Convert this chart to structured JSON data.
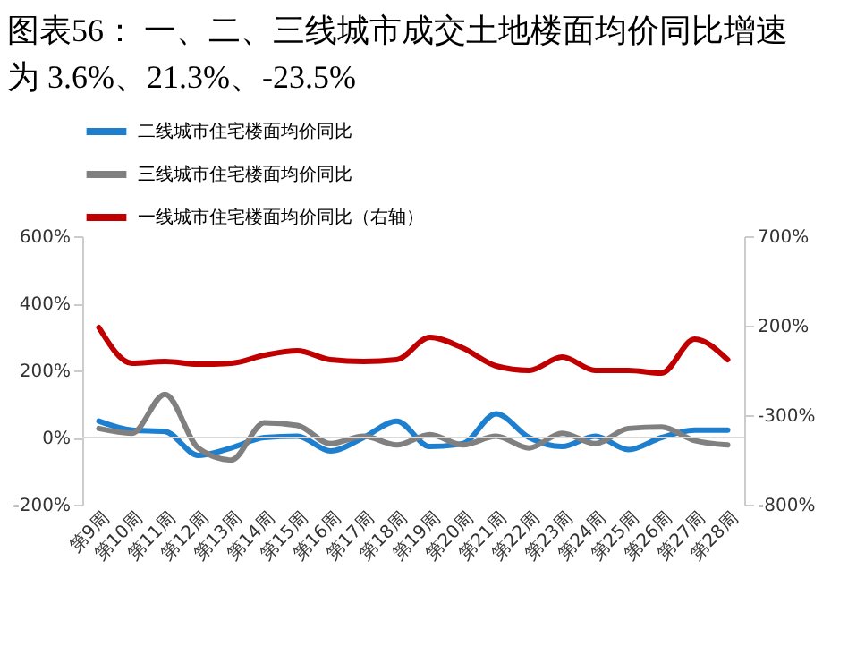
{
  "chart_data": {
    "type": "line",
    "title": "图表56：    一、二、三线城市成交土地楼面均价同比增速为 3.6%、21.3%、-23.5%",
    "categories": [
      "第9周",
      "第10周",
      "第11周",
      "第12周",
      "第13周",
      "第14周",
      "第15周",
      "第16周",
      "第17周",
      "第18周",
      "第19周",
      "第20周",
      "第21周",
      "第22周",
      "第23周",
      "第24周",
      "第25周",
      "第26周",
      "第27周",
      "第28周"
    ],
    "series": [
      {
        "name": "二线城市住宅楼面均价同比",
        "color": "#1f7fcf",
        "values": [
          49,
          22,
          18,
          -53,
          -31,
          0,
          4,
          -40,
          0,
          49,
          -27,
          -18,
          71,
          0,
          -27,
          4,
          -36,
          0,
          22,
          22
        ]
      },
      {
        "name": "三线城市住宅楼面均价同比",
        "color": "#808080",
        "values": [
          27,
          13,
          129,
          -31,
          -67,
          44,
          36,
          -18,
          4,
          -22,
          9,
          -22,
          4,
          -31,
          13,
          -18,
          27,
          31,
          -9,
          -22
        ]
      },
      {
        "name": "一线城市住宅楼面均价同比（右轴）",
        "color": "#c00000",
        "axis": "y2",
        "values": [
          190,
          -10,
          0,
          -15,
          -10,
          35,
          60,
          10,
          0,
          10,
          135,
          75,
          -25,
          -50,
          25,
          -50,
          -50,
          -65,
          125,
          10
        ]
      }
    ],
    "ylim": [
      -200,
      600
    ],
    "yticks": [
      {
        "value": -200,
        "label": "-200%"
      },
      {
        "value": 0,
        "label": "0%"
      },
      {
        "value": 200,
        "label": "200%"
      },
      {
        "value": 400,
        "label": "400%"
      },
      {
        "value": 600,
        "label": "600%"
      }
    ],
    "y2lim": [
      -800,
      700
    ],
    "y2ticks": [
      {
        "value": -800,
        "label": "-800%"
      },
      {
        "value": -300,
        "label": "-300%"
      },
      {
        "value": 200,
        "label": "200%"
      },
      {
        "value": 700,
        "label": "700%"
      }
    ],
    "ref_lines": [
      {
        "axis": "y",
        "value": 0,
        "color": "#d9d9d9"
      }
    ],
    "legend": "top",
    "grid": false,
    "line_style": "solid",
    "marker": "none"
  }
}
